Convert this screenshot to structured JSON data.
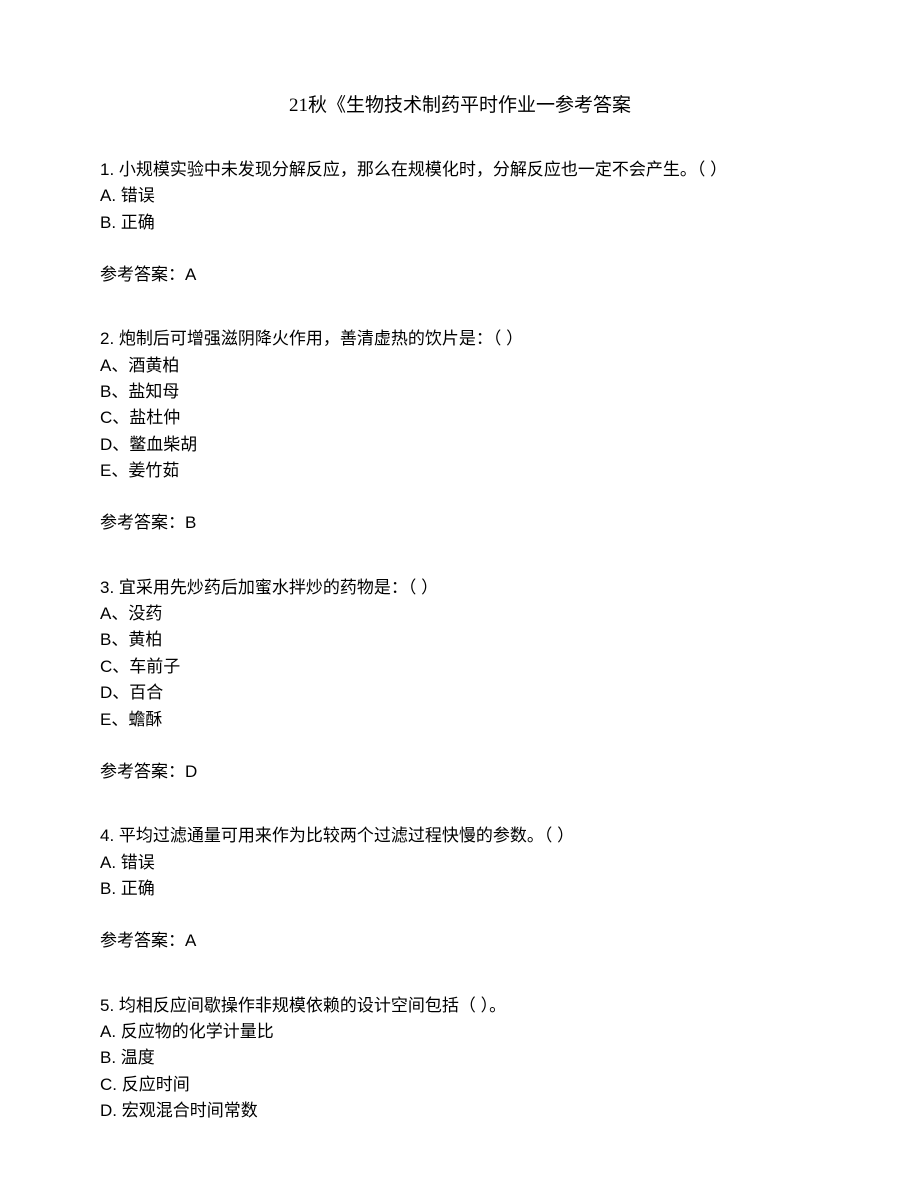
{
  "title": "21秋《生物技术制药平时作业一参考答案",
  "questions": [
    {
      "num": "1.",
      "text": "小规模实验中未发现分解反应，那么在规模化时，分解反应也一定不会产生。（ ）",
      "options": [
        "A. 错误",
        "B. 正确"
      ],
      "answer": "参考答案：A"
    },
    {
      "num": "2.",
      "text": "炮制后可增强滋阴降火作用，善清虚热的饮片是：（  ）",
      "options": [
        "A、酒黄柏",
        "B、盐知母",
        "C、盐杜仲",
        "D、鳖血柴胡",
        "E、姜竹茹"
      ],
      "answer": "参考答案：B"
    },
    {
      "num": "3.",
      "text": "宜采用先炒药后加蜜水拌炒的药物是：（  ）",
      "options": [
        "A、没药",
        "B、黄柏",
        "C、车前子",
        "D、百合",
        "E、蟾酥"
      ],
      "answer": "参考答案：D"
    },
    {
      "num": "4.",
      "text": "平均过滤通量可用来作为比较两个过滤过程快慢的参数。（  ）",
      "options": [
        "A. 错误",
        "B. 正确"
      ],
      "answer": "参考答案：A"
    },
    {
      "num": "5.",
      "text": "均相反应间歇操作非规模依赖的设计空间包括（  ）。",
      "options": [
        "A. 反应物的化学计量比",
        "B. 温度",
        "C. 反应时间",
        "D. 宏观混合时间常数"
      ],
      "answer": ""
    }
  ]
}
